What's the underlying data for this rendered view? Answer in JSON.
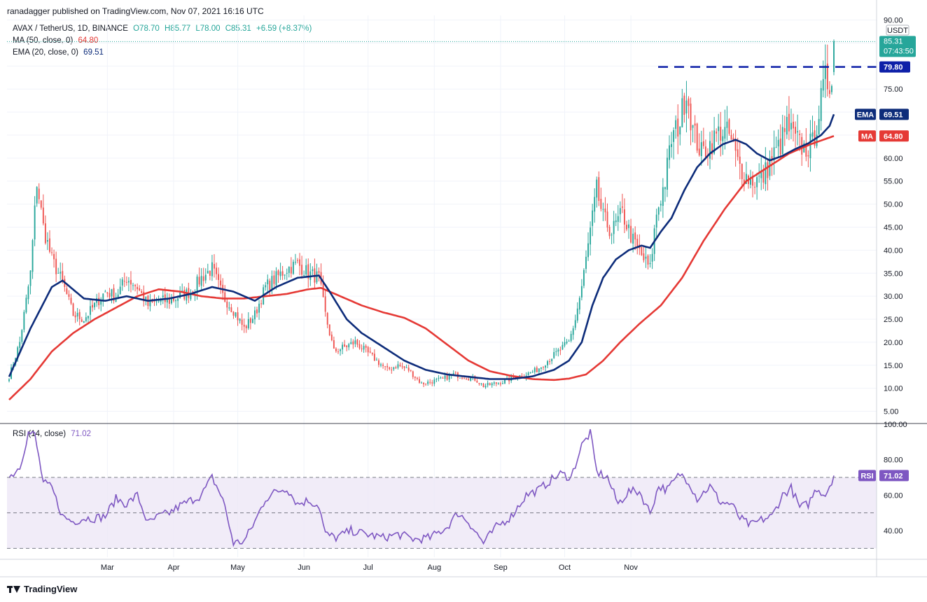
{
  "header": {
    "publisher": "ranadagger published on TradingView.com, Nov 07, 2021 16:16 UTC"
  },
  "legend": {
    "symbol": "AVAX / TetherUS, 1D, BINANCE",
    "open": "O78.70",
    "high": "H85.77",
    "low": "L78.00",
    "close": "C85.31",
    "change": "+6.59 (+8.37%)",
    "ma_label": "MA (50, close, 0)",
    "ma_value": "64.80",
    "ema_label": "EMA (20, close, 0)",
    "ema_value": "69.51",
    "rsi_label": "RSI (14, close)",
    "rsi_value": "71.02"
  },
  "price_axis": {
    "currency": "USDT",
    "last_price": "85.31",
    "countdown": "07:43:50",
    "level_label": "79.80",
    "ema_tag": "EMA",
    "ema_tag_value": "69.51",
    "ma_tag": "MA",
    "ma_tag_value": "64.80",
    "rsi_tag": "RSI",
    "rsi_tag_value": "71.02"
  },
  "footer": {
    "brand": "TradingView"
  },
  "colors": {
    "up": "#26a69a",
    "down": "#ef5350",
    "ema": "#0d2c7a",
    "ma": "#e53935",
    "rsi": "#7e57c2",
    "level": "#0d1fa8",
    "rsi_band": "#ede7f6"
  },
  "chart_data": [
    {
      "type": "candlestick",
      "title": "AVAX / TetherUS, 1D, BINANCE",
      "ylim": [
        2.5,
        91
      ],
      "y_ticks": [
        "5.00",
        "10.00",
        "15.00",
        "20.00",
        "25.00",
        "30.00",
        "35.00",
        "40.00",
        "45.00",
        "50.00",
        "55.00",
        "60.00",
        "65.00",
        "70.00",
        "75.00",
        "80.00",
        "85.00",
        "90.00"
      ],
      "x_ticks": [
        "Mar",
        "Apr",
        "May",
        "Jun",
        "Jul",
        "Aug",
        "Sep",
        "Oct",
        "Nov"
      ],
      "horizontal_level": 79.8,
      "anchors": {
        "close": [
          [
            0,
            12.5
          ],
          [
            5,
            20
          ],
          [
            10,
            35
          ],
          [
            13,
            55
          ],
          [
            16,
            45
          ],
          [
            20,
            38
          ],
          [
            25,
            33
          ],
          [
            30,
            26
          ],
          [
            35,
            25
          ],
          [
            40,
            28
          ],
          [
            45,
            31
          ],
          [
            50,
            30
          ],
          [
            55,
            34
          ],
          [
            60,
            32
          ],
          [
            65,
            28
          ],
          [
            70,
            29
          ],
          [
            75,
            29
          ],
          [
            80,
            30
          ],
          [
            85,
            31
          ],
          [
            90,
            34
          ],
          [
            95,
            36
          ],
          [
            100,
            30
          ],
          [
            105,
            27
          ],
          [
            110,
            23
          ],
          [
            115,
            26
          ],
          [
            120,
            32
          ],
          [
            125,
            34
          ],
          [
            130,
            36
          ],
          [
            135,
            37
          ],
          [
            140,
            35
          ],
          [
            145,
            34
          ],
          [
            148,
            26
          ],
          [
            152,
            18
          ],
          [
            157,
            19
          ],
          [
            162,
            20
          ],
          [
            167,
            18
          ],
          [
            172,
            16
          ],
          [
            177,
            14
          ],
          [
            182,
            15
          ],
          [
            187,
            14
          ],
          [
            193,
            11
          ],
          [
            198,
            11.5
          ],
          [
            203,
            12
          ],
          [
            208,
            13
          ],
          [
            213,
            12.5
          ],
          [
            218,
            12
          ],
          [
            222,
            10.5
          ],
          [
            227,
            11
          ],
          [
            232,
            11.5
          ],
          [
            237,
            12.5
          ],
          [
            242,
            13
          ],
          [
            247,
            14
          ],
          [
            252,
            16
          ],
          [
            257,
            18
          ],
          [
            262,
            20
          ],
          [
            265,
            25
          ],
          [
            268,
            32
          ],
          [
            272,
            44
          ],
          [
            275,
            53
          ],
          [
            278,
            47
          ],
          [
            282,
            44
          ],
          [
            287,
            48
          ],
          [
            292,
            42
          ],
          [
            297,
            38
          ],
          [
            300,
            36
          ],
          [
            303,
            48
          ],
          [
            307,
            55
          ],
          [
            310,
            64
          ],
          [
            314,
            68
          ],
          [
            317,
            75
          ],
          [
            320,
            66
          ],
          [
            324,
            61
          ],
          [
            328,
            63
          ],
          [
            333,
            66
          ],
          [
            337,
            65
          ],
          [
            341,
            59
          ],
          [
            345,
            56
          ],
          [
            349,
            55
          ],
          [
            353,
            56
          ],
          [
            357,
            60
          ],
          [
            361,
            63
          ],
          [
            364,
            67
          ],
          [
            368,
            64
          ],
          [
            372,
            62
          ],
          [
            376,
            63
          ],
          [
            379,
            70
          ],
          [
            382,
            77
          ],
          [
            384,
            76
          ],
          [
            385,
            79
          ],
          [
            386,
            85.31
          ]
        ],
        "ema": [
          [
            0,
            12.5
          ],
          [
            10,
            23
          ],
          [
            20,
            32
          ],
          [
            25,
            33.4
          ],
          [
            35,
            29.5
          ],
          [
            45,
            29
          ],
          [
            55,
            30
          ],
          [
            65,
            29
          ],
          [
            75,
            29.5
          ],
          [
            85,
            30.5
          ],
          [
            95,
            32
          ],
          [
            105,
            31
          ],
          [
            115,
            29
          ],
          [
            125,
            32
          ],
          [
            135,
            34
          ],
          [
            145,
            34.5
          ],
          [
            150,
            31
          ],
          [
            158,
            25
          ],
          [
            165,
            22
          ],
          [
            175,
            19
          ],
          [
            185,
            16
          ],
          [
            195,
            14
          ],
          [
            205,
            13
          ],
          [
            215,
            12.5
          ],
          [
            225,
            12
          ],
          [
            235,
            12
          ],
          [
            245,
            12.6
          ],
          [
            255,
            14
          ],
          [
            262,
            16
          ],
          [
            268,
            20
          ],
          [
            273,
            28
          ],
          [
            278,
            34
          ],
          [
            284,
            38
          ],
          [
            290,
            40
          ],
          [
            296,
            41
          ],
          [
            300,
            40.5
          ],
          [
            305,
            44
          ],
          [
            310,
            47
          ],
          [
            316,
            53
          ],
          [
            322,
            58
          ],
          [
            328,
            61
          ],
          [
            334,
            63
          ],
          [
            340,
            64
          ],
          [
            345,
            63
          ],
          [
            350,
            61
          ],
          [
            356,
            59.5
          ],
          [
            362,
            60.5
          ],
          [
            368,
            62
          ],
          [
            374,
            63.2
          ],
          [
            380,
            65
          ],
          [
            384,
            67
          ],
          [
            386,
            69.51
          ]
        ],
        "ma": [
          [
            0,
            7.5
          ],
          [
            10,
            12
          ],
          [
            20,
            18
          ],
          [
            30,
            22
          ],
          [
            40,
            25
          ],
          [
            50,
            27.5
          ],
          [
            60,
            30
          ],
          [
            70,
            31.5
          ],
          [
            80,
            31
          ],
          [
            90,
            30
          ],
          [
            100,
            29.5
          ],
          [
            110,
            29.5
          ],
          [
            120,
            30
          ],
          [
            130,
            30.5
          ],
          [
            140,
            31.5
          ],
          [
            146,
            31.8
          ],
          [
            155,
            30
          ],
          [
            165,
            28
          ],
          [
            175,
            26.5
          ],
          [
            185,
            25.3
          ],
          [
            195,
            23
          ],
          [
            205,
            19.5
          ],
          [
            215,
            16
          ],
          [
            225,
            13.7
          ],
          [
            235,
            12.7
          ],
          [
            245,
            12
          ],
          [
            255,
            11.8
          ],
          [
            262,
            12.1
          ],
          [
            270,
            13
          ],
          [
            278,
            16
          ],
          [
            286,
            20
          ],
          [
            295,
            24
          ],
          [
            305,
            28
          ],
          [
            315,
            34
          ],
          [
            325,
            42
          ],
          [
            335,
            49
          ],
          [
            345,
            55
          ],
          [
            355,
            58
          ],
          [
            365,
            61
          ],
          [
            375,
            63
          ],
          [
            386,
            64.8
          ]
        ],
        "rsi": [
          [
            0,
            70
          ],
          [
            5,
            76
          ],
          [
            9,
            95
          ],
          [
            12,
            94
          ],
          [
            16,
            67
          ],
          [
            20,
            64
          ],
          [
            25,
            48
          ],
          [
            30,
            45
          ],
          [
            35,
            47
          ],
          [
            40,
            47
          ],
          [
            45,
            48
          ],
          [
            50,
            58
          ],
          [
            55,
            55
          ],
          [
            60,
            60
          ],
          [
            65,
            44
          ],
          [
            70,
            48
          ],
          [
            75,
            50
          ],
          [
            80,
            54
          ],
          [
            85,
            57
          ],
          [
            90,
            60
          ],
          [
            95,
            70
          ],
          [
            100,
            58
          ],
          [
            105,
            33
          ],
          [
            110,
            34
          ],
          [
            115,
            45
          ],
          [
            120,
            58
          ],
          [
            125,
            62
          ],
          [
            130,
            64
          ],
          [
            135,
            55
          ],
          [
            140,
            57
          ],
          [
            145,
            54
          ],
          [
            148,
            38
          ],
          [
            153,
            36
          ],
          [
            160,
            40
          ],
          [
            167,
            38
          ],
          [
            175,
            36
          ],
          [
            182,
            38
          ],
          [
            190,
            35
          ],
          [
            197,
            36
          ],
          [
            205,
            42
          ],
          [
            210,
            50
          ],
          [
            215,
            45
          ],
          [
            222,
            33
          ],
          [
            228,
            42
          ],
          [
            235,
            48
          ],
          [
            242,
            60
          ],
          [
            248,
            63
          ],
          [
            253,
            68
          ],
          [
            258,
            72
          ],
          [
            263,
            70
          ],
          [
            268,
            88
          ],
          [
            272,
            95
          ],
          [
            275,
            73
          ],
          [
            280,
            70
          ],
          [
            285,
            55
          ],
          [
            290,
            62
          ],
          [
            295,
            62
          ],
          [
            300,
            50
          ],
          [
            304,
            65
          ],
          [
            308,
            63
          ],
          [
            314,
            72
          ],
          [
            318,
            68
          ],
          [
            322,
            58
          ],
          [
            328,
            65
          ],
          [
            333,
            56
          ],
          [
            338,
            55
          ],
          [
            342,
            47
          ],
          [
            347,
            43
          ],
          [
            352,
            46
          ],
          [
            357,
            48
          ],
          [
            362,
            60
          ],
          [
            366,
            64
          ],
          [
            370,
            53
          ],
          [
            374,
            55
          ],
          [
            378,
            64
          ],
          [
            382,
            60
          ],
          [
            386,
            71.02
          ]
        ]
      },
      "candle_count": 387,
      "series": [
        {
          "name": "EMA (20, close, 0)",
          "last": 69.51
        },
        {
          "name": "MA (50, close, 0)",
          "last": 64.8
        }
      ]
    },
    {
      "type": "line",
      "title": "RSI (14, close)",
      "ylim": [
        25,
        100
      ],
      "y_ticks": [
        "40.00",
        "60.00",
        "80.00",
        "100.00"
      ],
      "band": [
        30,
        70
      ],
      "mid": 50,
      "series": [
        {
          "name": "RSI (14, close)",
          "last": 71.02
        }
      ]
    }
  ]
}
